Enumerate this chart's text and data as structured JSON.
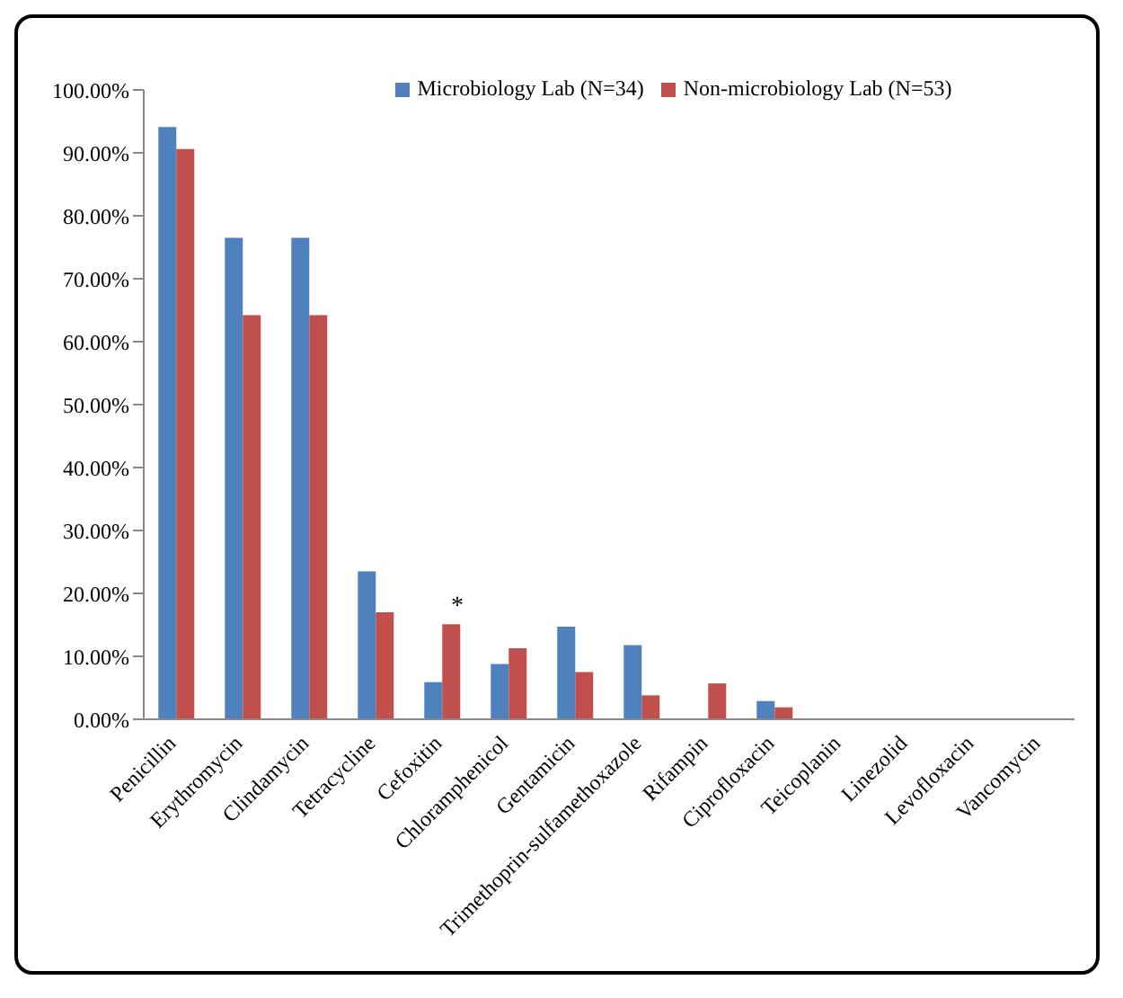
{
  "chart_data": {
    "type": "bar",
    "categories": [
      "Penicillin",
      "Erythromycin",
      "Clindamycin",
      "Tetracycline",
      "Cefoxitin",
      "Chloramphenicol",
      "Gentamicin",
      "Trimethoprin-sulfamethoxazole",
      "Rifampin",
      "Ciprofloxacin",
      "Teicoplanin",
      "Linezolid",
      "Levofloxacin",
      "Vancomycin"
    ],
    "series": [
      {
        "name": "Microbiology Lab (N=34)",
        "color": "#4f81bd",
        "values": [
          94.1,
          76.5,
          76.5,
          23.5,
          5.9,
          8.8,
          14.7,
          11.8,
          0,
          2.9,
          0,
          0,
          0,
          0
        ]
      },
      {
        "name": "Non-microbiology Lab (N=53)",
        "color": "#c0504d",
        "values": [
          90.6,
          64.2,
          64.2,
          17.0,
          15.1,
          11.3,
          7.5,
          3.8,
          5.7,
          1.9,
          0,
          0,
          0,
          0
        ]
      }
    ],
    "ylim": [
      0,
      100
    ],
    "yticks": [
      {
        "value": 0,
        "label": "0.00%"
      },
      {
        "value": 10,
        "label": "10.00%"
      },
      {
        "value": 20,
        "label": "20.00%"
      },
      {
        "value": 30,
        "label": "30.00%"
      },
      {
        "value": 40,
        "label": "40.00%"
      },
      {
        "value": 50,
        "label": "50.00%"
      },
      {
        "value": 60,
        "label": "60.00%"
      },
      {
        "value": 70,
        "label": "70.00%"
      },
      {
        "value": 80,
        "label": "80.00%"
      },
      {
        "value": 90,
        "label": "90.00%"
      },
      {
        "value": 100,
        "label": "100.00%"
      }
    ],
    "annotations": [
      {
        "text": "*",
        "x": "Cefoxitin",
        "y": 15.1
      }
    ],
    "grid": false,
    "legend": "top"
  }
}
